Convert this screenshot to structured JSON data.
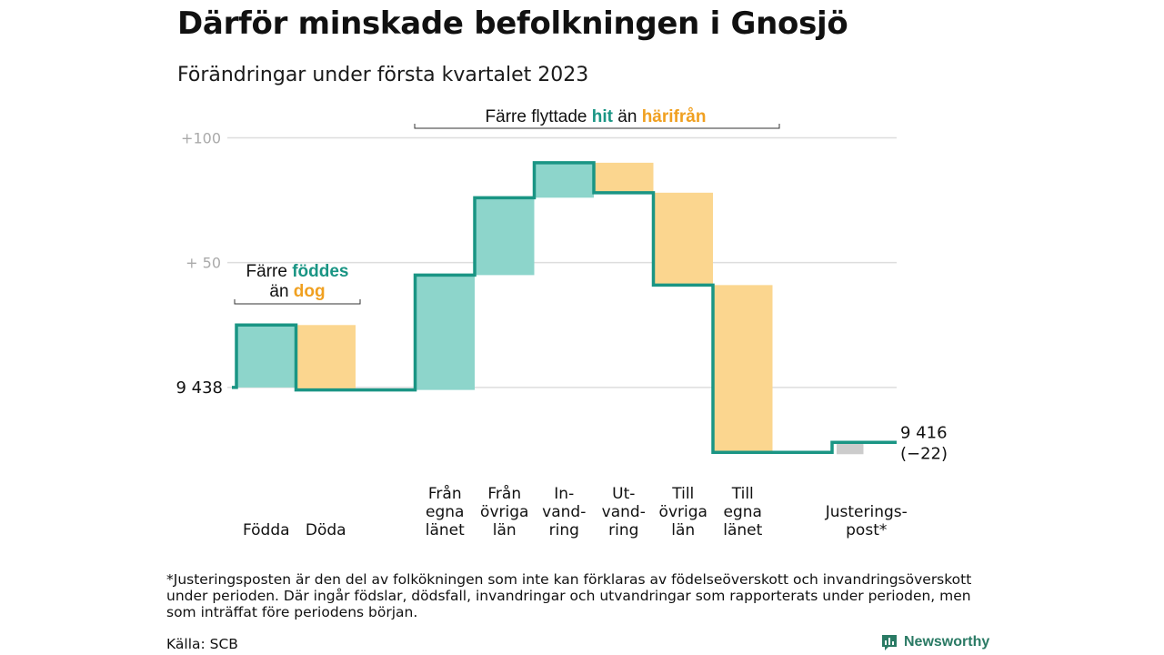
{
  "title": "Därför minskade befolkningen i Gnosjö",
  "subtitle": "Förändringar under första kvartalet 2023",
  "colors": {
    "positive_fill": "#8dd5cb",
    "negative_fill": "#fbd68f",
    "adjustment_fill": "#cccccc",
    "line": "#1a9584",
    "teal_text": "#1a9584",
    "orange_text": "#f0a020",
    "grid": "#dddddd",
    "axis_label": "#aaaaaa",
    "brand": "#2a7a64"
  },
  "annotations": {
    "births": {
      "line1_a": "Färre ",
      "line1_b": "föddes",
      "line2_a": "än ",
      "line2_b": "dog"
    },
    "migration": {
      "a": "Färre flyttade ",
      "b": "hit",
      "c": " än ",
      "d": "härifrån"
    }
  },
  "chart_data": {
    "type": "waterfall",
    "start_label": "9 438",
    "end_label_line1": "9 416",
    "end_label_line2": "(−22)",
    "start_value": 9438,
    "end_value": 9416,
    "total_change": -22,
    "yticks": [
      {
        "value": 100,
        "label": "+100"
      },
      {
        "value": 50,
        "label": "+ 50"
      }
    ],
    "ylim": [
      -27,
      110
    ],
    "steps": [
      {
        "category": [
          "Födda"
        ],
        "change": 25,
        "kind": "positive"
      },
      {
        "category": [
          "Döda"
        ],
        "change": -26,
        "kind": "negative"
      },
      {
        "category": [
          "Från",
          "egna",
          "länet"
        ],
        "change": 46,
        "kind": "positive"
      },
      {
        "category": [
          "Från",
          "övriga",
          "län"
        ],
        "change": 31,
        "kind": "positive"
      },
      {
        "category": [
          "In-",
          "vand-",
          "ring"
        ],
        "change": 14,
        "kind": "positive"
      },
      {
        "category": [
          "Ut-",
          "vand-",
          "ring"
        ],
        "change": -12,
        "kind": "negative"
      },
      {
        "category": [
          "Till",
          "övriga",
          "län"
        ],
        "change": -37,
        "kind": "negative"
      },
      {
        "category": [
          "Till",
          "egna",
          "länet"
        ],
        "change": -67,
        "kind": "negative"
      },
      {
        "category": [
          "Justerings-",
          "post*"
        ],
        "change": 4,
        "kind": "adjustment"
      }
    ]
  },
  "footnote": "*Justeringsposten är den del av folkökningen som inte kan förklaras av födelseöverskott och invandringsöverskott under perioden. Där ingår födslar, dödsfall, invandringar och utvandringar som rapporterats under perioden, men som inträffat före periodens början.",
  "source": "Källa: SCB",
  "brand": {
    "name": "Newsworthy",
    "icon": "newsworthy-logo-icon"
  }
}
